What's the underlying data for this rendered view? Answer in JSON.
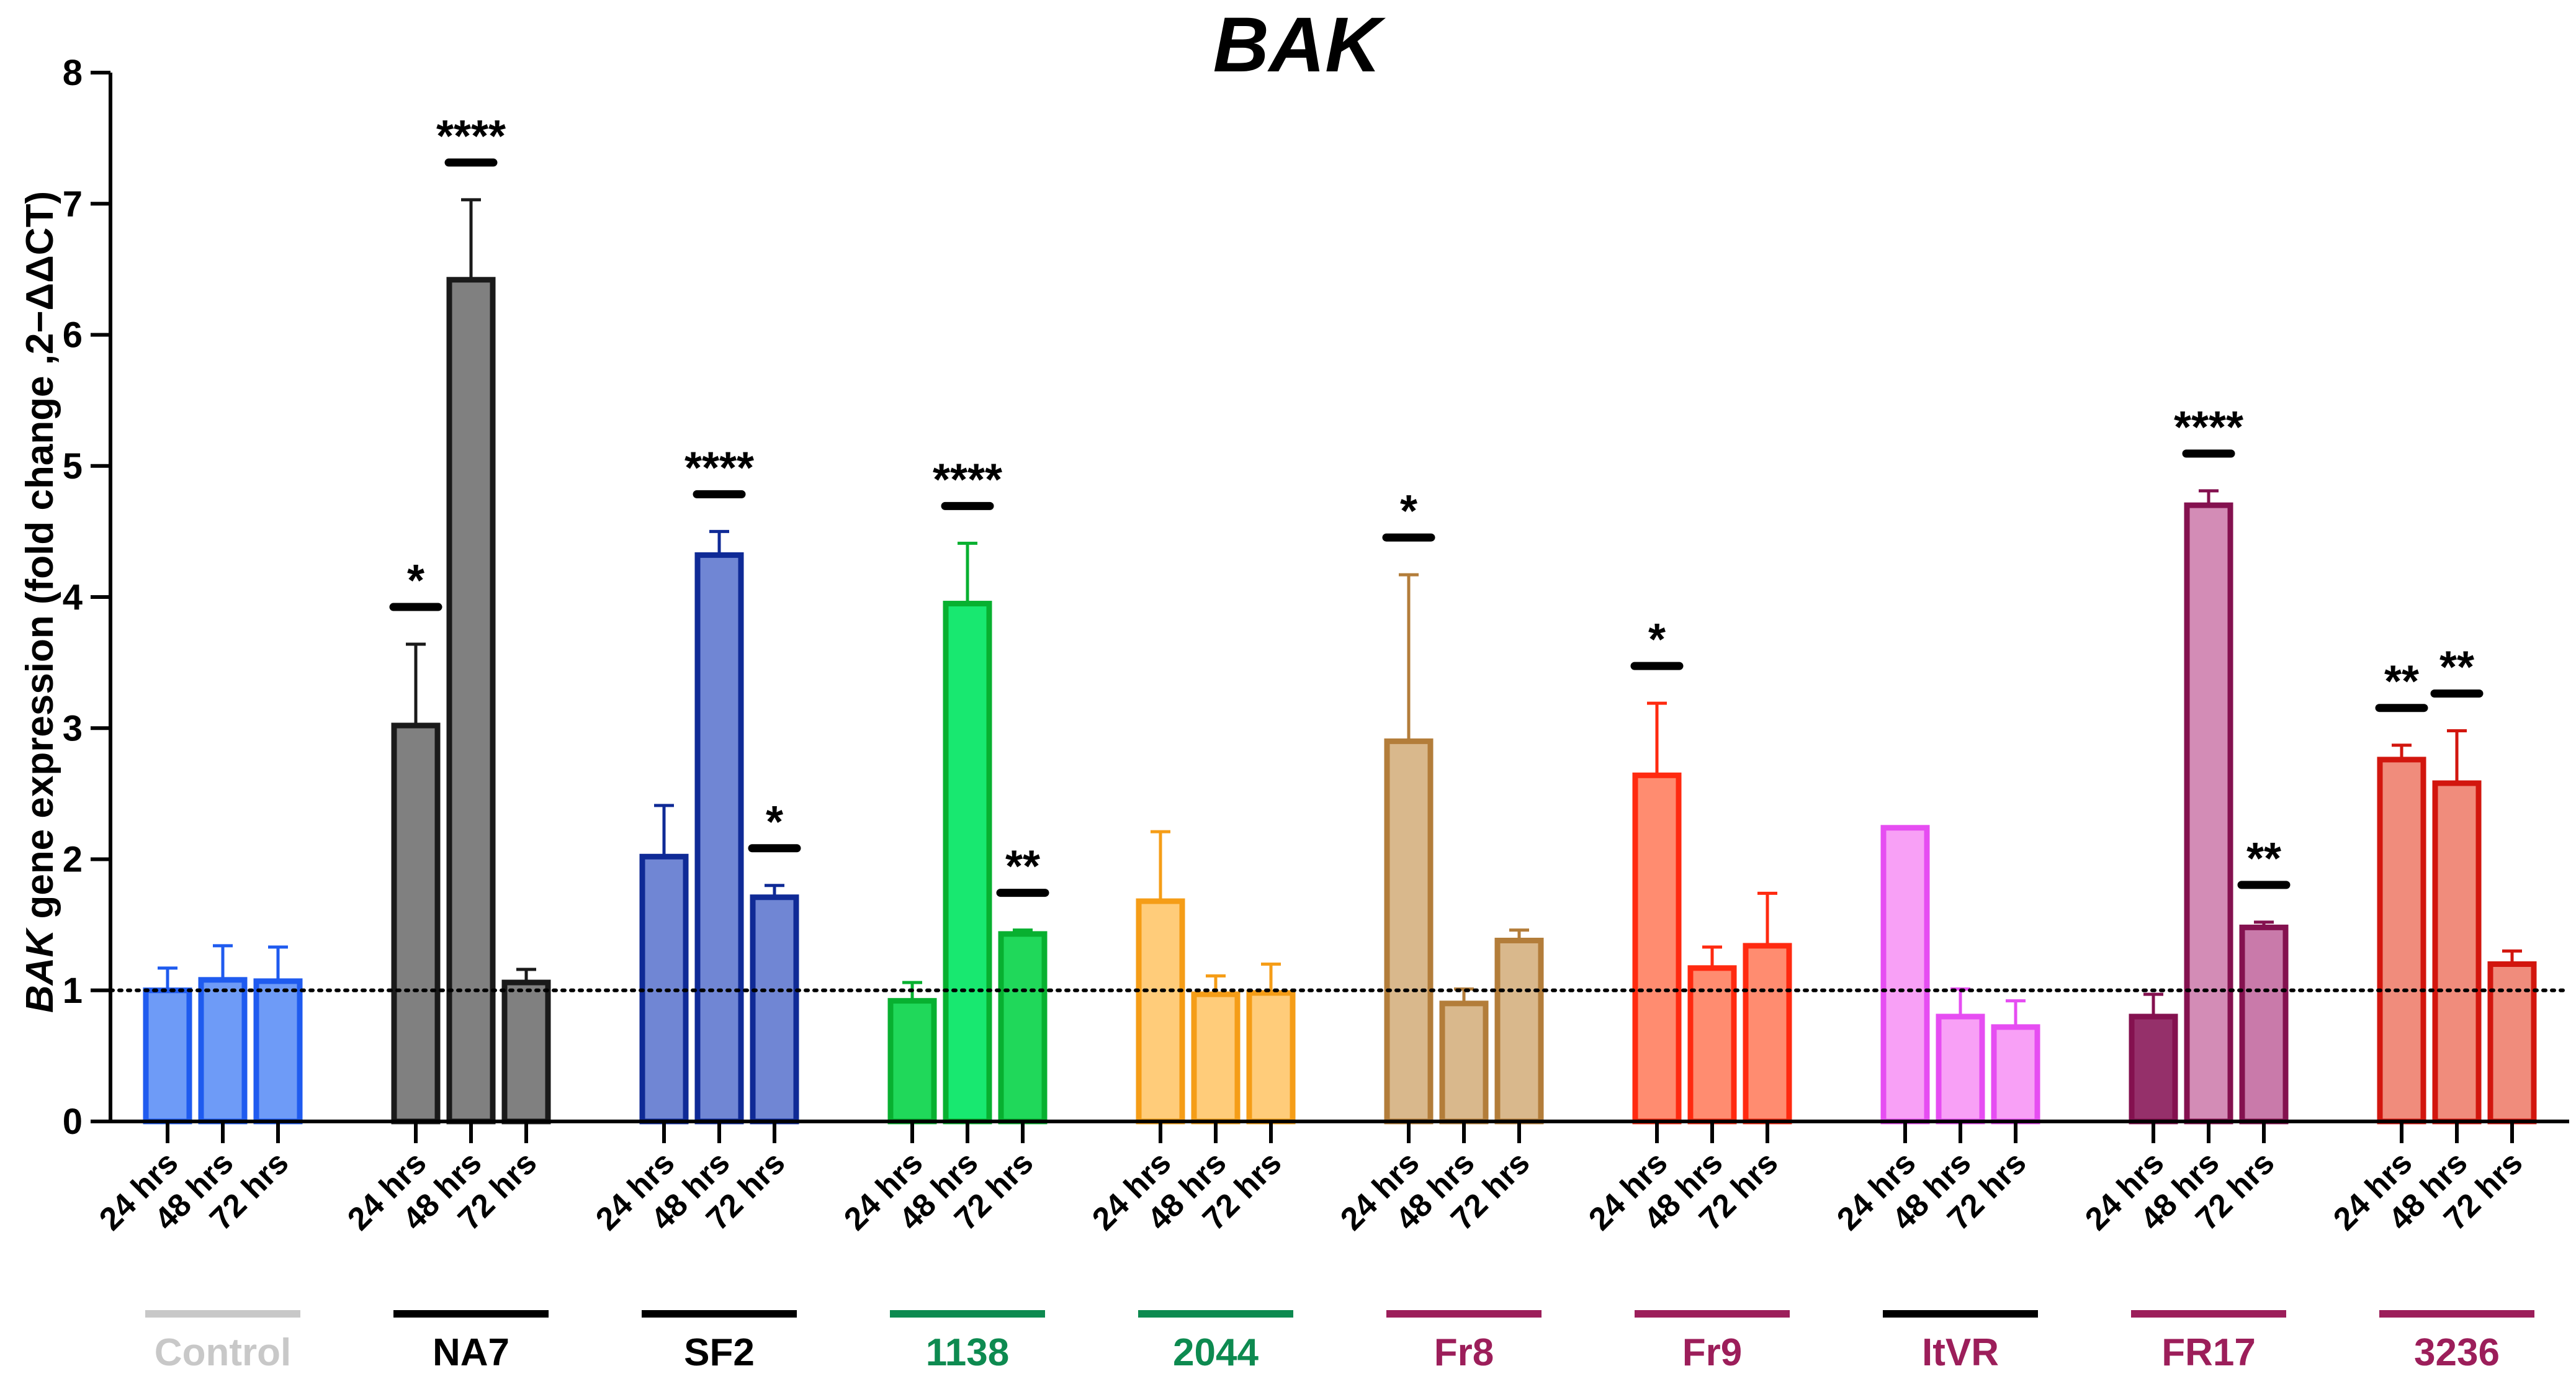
{
  "chart_data": {
    "type": "bar",
    "title": "BAK",
    "ylabel_italic": "BAK",
    "ylabel_rest": " gene expression (fold change ,2−ΔΔCT)",
    "ylim": [
      0,
      8
    ],
    "yticks": [
      "0",
      "1",
      "2",
      "3",
      "4",
      "5",
      "6",
      "7",
      "8"
    ],
    "reference_line": 1,
    "timepoints": [
      "24 hrs",
      "48 hrs",
      "72 hrs"
    ],
    "groups": [
      {
        "name": "Control",
        "label_color": "#c8c8c8",
        "line_color": "#c8c8c8",
        "values": [
          1.0,
          1.08,
          1.07
        ],
        "errors": [
          0.17,
          0.26,
          0.26
        ],
        "sig": [
          "",
          "",
          ""
        ],
        "fill": [
          "#6e9bf7",
          "#6e9bf7",
          "#6e9bf7"
        ],
        "stroke": [
          "#1f5bef",
          "#1f5bef",
          "#1f5bef"
        ]
      },
      {
        "name": "NA7",
        "label_color": "#000000",
        "line_color": "#000000",
        "values": [
          3.02,
          6.42,
          1.06
        ],
        "errors": [
          0.62,
          0.61,
          0.1
        ],
        "sig": [
          "*",
          "****",
          ""
        ],
        "fill": [
          "#808080",
          "#808080",
          "#808080"
        ],
        "stroke": [
          "#1a1a1a",
          "#1a1a1a",
          "#1a1a1a"
        ]
      },
      {
        "name": "SF2",
        "label_color": "#000000",
        "line_color": "#000000",
        "values": [
          2.02,
          4.32,
          1.71
        ],
        "errors": [
          0.39,
          0.18,
          0.09
        ],
        "sig": [
          "",
          "****",
          "*"
        ],
        "fill": [
          "#7086d4",
          "#7086d4",
          "#7086d4"
        ],
        "stroke": [
          "#0f2a96",
          "#0f2a96",
          "#0f2a96"
        ]
      },
      {
        "name": "1138",
        "label_color": "#0d8a50",
        "line_color": "#0d8a50",
        "values": [
          0.92,
          3.95,
          1.43
        ],
        "errors": [
          0.14,
          0.46,
          0.03
        ],
        "sig": [
          "",
          "****",
          "**"
        ],
        "fill": [
          "#20d85a",
          "#18e870",
          "#20d85a"
        ],
        "stroke": [
          "#08b030",
          "#08b030",
          "#08b030"
        ]
      },
      {
        "name": "2044",
        "label_color": "#0d8a50",
        "line_color": "#0d8a50",
        "values": [
          1.68,
          0.97,
          0.98
        ],
        "errors": [
          0.53,
          0.14,
          0.22
        ],
        "sig": [
          "",
          "",
          ""
        ],
        "fill": [
          "#ffcc7a",
          "#ffcc7a",
          "#ffcc7a"
        ],
        "stroke": [
          "#f59d17",
          "#f59d17",
          "#f59d17"
        ]
      },
      {
        "name": "Fr8",
        "label_color": "#9c1e5a",
        "line_color": "#9c1e5a",
        "values": [
          2.9,
          0.9,
          1.38
        ],
        "errors": [
          1.27,
          0.11,
          0.08
        ],
        "sig": [
          "*",
          "",
          ""
        ],
        "fill": [
          "#d9b88c",
          "#d9b88c",
          "#d9b88c"
        ],
        "stroke": [
          "#b37d3a",
          "#b37d3a",
          "#b37d3a"
        ]
      },
      {
        "name": "Fr9",
        "label_color": "#9c1e5a",
        "line_color": "#9c1e5a",
        "values": [
          2.64,
          1.17,
          1.34
        ],
        "errors": [
          0.55,
          0.16,
          0.4
        ],
        "sig": [
          "*",
          "",
          ""
        ],
        "fill": [
          "#ff8c70",
          "#ff8c70",
          "#ff8c70"
        ],
        "stroke": [
          "#ff2a10",
          "#ff2a10",
          "#ff2a10"
        ]
      },
      {
        "name": "ItVR",
        "label_color": "#9c1e5a",
        "line_color": "#000000",
        "values": [
          2.24,
          0.8,
          0.72
        ],
        "errors": [
          0.0,
          0.21,
          0.2
        ],
        "sig": [
          "",
          "",
          ""
        ],
        "fill": [
          "#f8a0f6",
          "#f8a0f6",
          "#f8a0f6"
        ],
        "stroke": [
          "#e64df2",
          "#e64df2",
          "#e64df2"
        ]
      },
      {
        "name": "FR17",
        "label_color": "#9c1e5a",
        "line_color": "#9c1e5a",
        "values": [
          0.8,
          4.7,
          1.48
        ],
        "errors": [
          0.17,
          0.11,
          0.04
        ],
        "sig": [
          "",
          "****",
          "**"
        ],
        "fill": [
          "#95306a",
          "#d38cb6",
          "#c97aaa"
        ],
        "stroke": [
          "#84114f",
          "#84114f",
          "#84114f"
        ]
      },
      {
        "name": "3236",
        "label_color": "#9c1e5a",
        "line_color": "#9c1e5a",
        "values": [
          2.76,
          2.58,
          1.2
        ],
        "errors": [
          0.11,
          0.4,
          0.1
        ],
        "sig": [
          "**",
          "**",
          ""
        ],
        "fill": [
          "#f08c7c",
          "#f08c7c",
          "#f08c7c"
        ],
        "stroke": [
          "#d2160e",
          "#d2160e",
          "#d2160e"
        ]
      }
    ]
  }
}
